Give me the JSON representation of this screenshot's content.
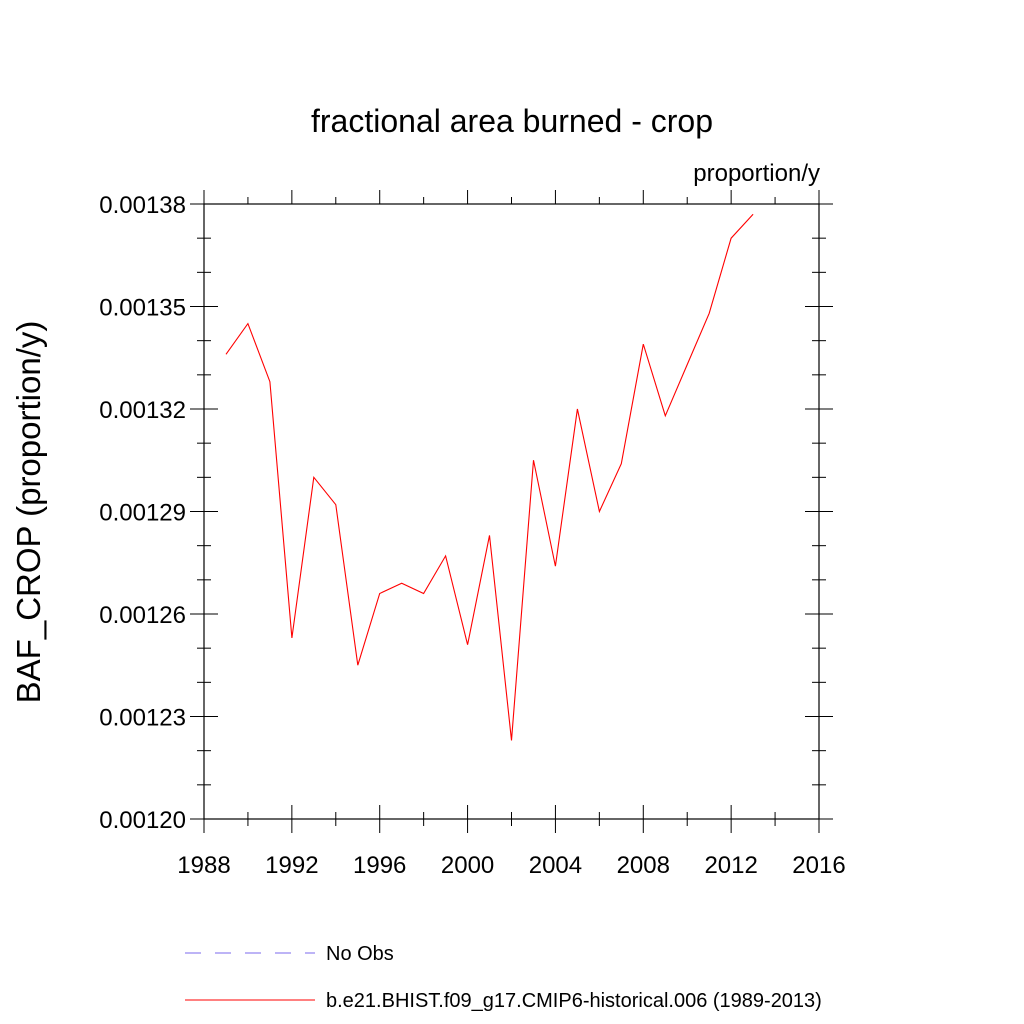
{
  "chart_data": {
    "type": "line",
    "title": "fractional area burned - crop",
    "units": "proportion/y",
    "ylabel": "BAF_CROP  (proportion/y)",
    "xlabel": "",
    "xlim": [
      1988,
      2016
    ],
    "ylim": [
      0.0012,
      0.00138
    ],
    "xticks": [
      "1988",
      "1992",
      "1996",
      "2000",
      "2004",
      "2008",
      "2012",
      "2016"
    ],
    "yticks": [
      "0.00120",
      "0.00123",
      "0.00126",
      "0.00129",
      "0.00132",
      "0.00135",
      "0.00138"
    ],
    "grid": false,
    "legend_position": "bottom",
    "series": [
      {
        "name": "b.e21.BHIST.f09_g17.CMIP6-historical.006 (1989-2013)",
        "color": "#ff0000",
        "style": "solid",
        "x": [
          1989,
          1990,
          1991,
          1992,
          1993,
          1994,
          1995,
          1996,
          1997,
          1998,
          1999,
          2000,
          2001,
          2002,
          2003,
          2004,
          2005,
          2006,
          2007,
          2008,
          2009,
          2010,
          2011,
          2012,
          2013
        ],
        "y": [
          0.001336,
          0.001345,
          0.001328,
          0.001253,
          0.0013,
          0.001292,
          0.001245,
          0.001266,
          0.001269,
          0.001266,
          0.001277,
          0.001251,
          0.001283,
          0.001223,
          0.001305,
          0.001274,
          0.00132,
          0.00129,
          0.001304,
          0.001339,
          0.001318,
          0.001333,
          0.001348,
          0.00137,
          0.001377
        ]
      }
    ],
    "legend": [
      {
        "label": "No Obs",
        "color": "#7b68ee",
        "style": "dashed"
      },
      {
        "label": "b.e21.BHIST.f09_g17.CMIP6-historical.006 (1989-2013)",
        "color": "#ff0000",
        "style": "solid"
      }
    ]
  }
}
